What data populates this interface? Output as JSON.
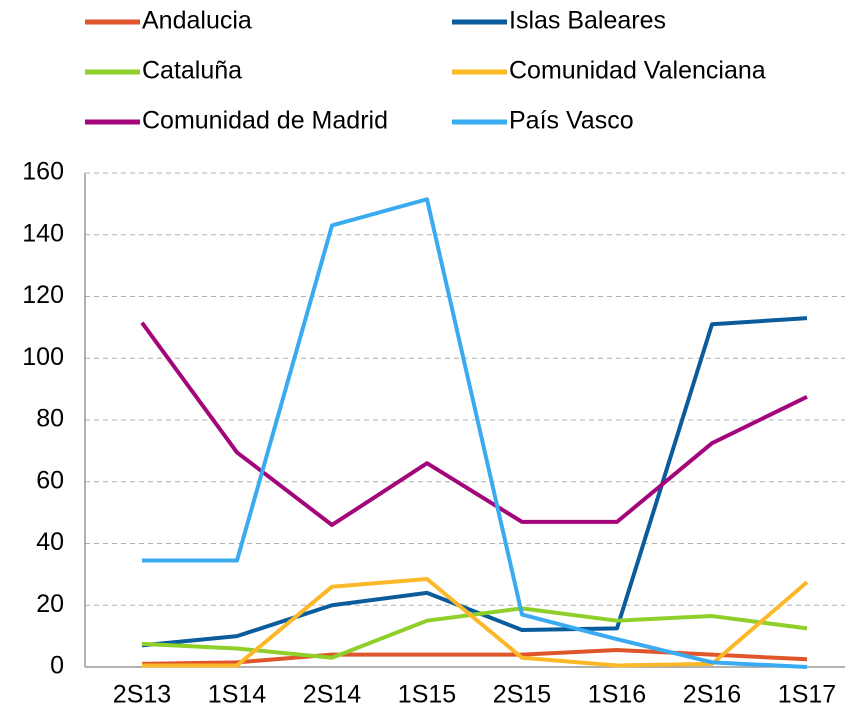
{
  "chart_data": {
    "type": "line",
    "categories": [
      "2S13",
      "1S14",
      "2S14",
      "1S15",
      "2S15",
      "1S16",
      "2S16",
      "1S17"
    ],
    "series": [
      {
        "name": "Andalucia",
        "color": "#e0562a",
        "values": [
          1,
          1.5,
          4,
          4,
          4,
          5.5,
          4,
          2.5
        ]
      },
      {
        "name": "Islas Baleares",
        "color": "#0a5c9c",
        "values": [
          7,
          10,
          20,
          24,
          12,
          12.5,
          111,
          113
        ]
      },
      {
        "name": "Cataluña",
        "color": "#8fcf2a",
        "values": [
          7.5,
          6,
          3,
          15,
          19,
          15,
          16.5,
          12.5
        ]
      },
      {
        "name": "Comunidad Valenciana",
        "color": "#fbb829",
        "values": [
          0.5,
          0.5,
          26,
          28.5,
          3,
          0.5,
          1,
          27.5
        ]
      },
      {
        "name": "Comunidad de Madrid",
        "color": "#a3067a",
        "values": [
          111.5,
          69.5,
          46,
          66,
          47,
          47,
          72.5,
          87.5
        ]
      },
      {
        "name": "País Vasco",
        "color": "#3aabf0",
        "values": [
          34.5,
          34.5,
          143,
          151.5,
          17,
          9,
          1.5,
          0
        ]
      }
    ],
    "ylim": [
      0,
      160
    ],
    "yticks": [
      0,
      20,
      40,
      60,
      80,
      100,
      120,
      140,
      160
    ],
    "grid": true
  }
}
